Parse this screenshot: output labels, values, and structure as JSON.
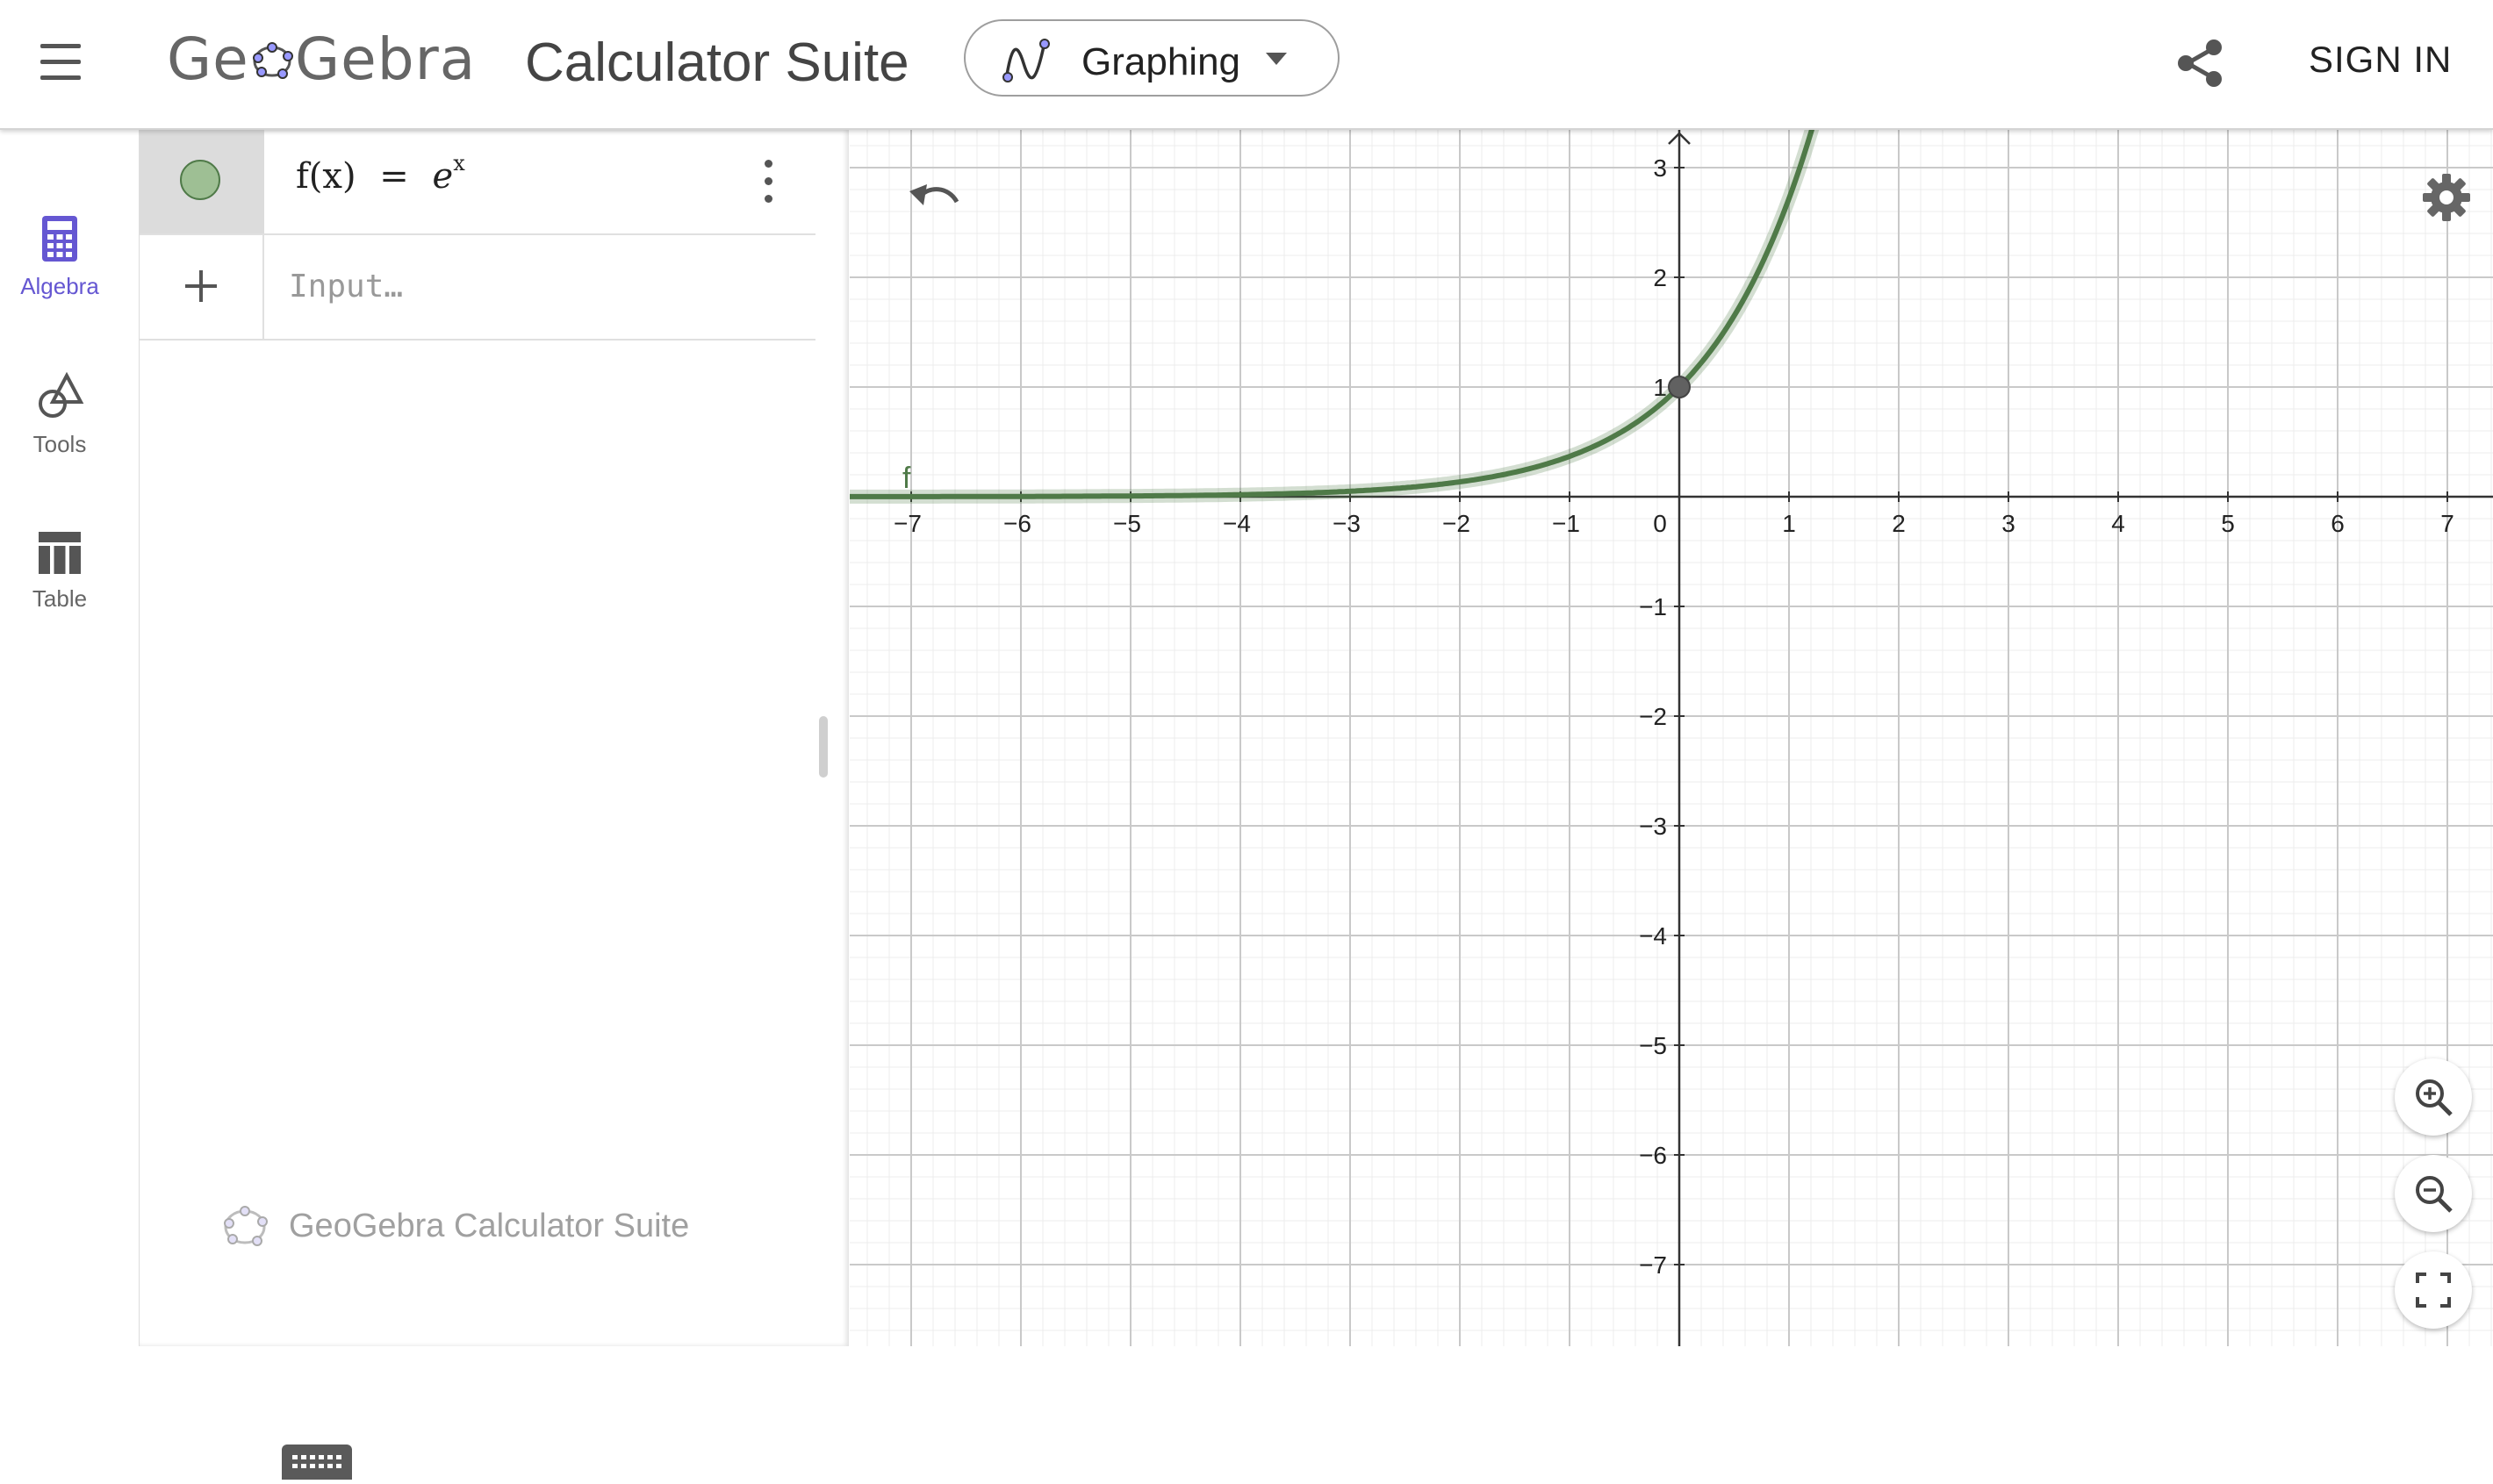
{
  "header": {
    "logo_text": "GeoGebra",
    "title": "Calculator Suite",
    "app_selector": {
      "label": "Graphing"
    },
    "sign_in": "SIGN IN"
  },
  "nav": {
    "items": [
      {
        "label": "Algebra",
        "icon": "calculator-icon",
        "active": true
      },
      {
        "label": "Tools",
        "icon": "shapes-icon",
        "active": false
      },
      {
        "label": "Table",
        "icon": "table-icon",
        "active": false
      }
    ]
  },
  "algebra": {
    "entries": [
      {
        "lhs": "f(x)",
        "eq": "=",
        "base": "e",
        "exponent": "x",
        "color": "#4f7a48"
      }
    ],
    "input_placeholder": "Input…",
    "watermark": "GeoGebra Calculator Suite"
  },
  "graph": {
    "curve_label": "f",
    "function": "e^x",
    "point": {
      "x": 0,
      "y": 1
    },
    "x_range": [
      -7.5,
      7.5
    ],
    "y_range": [
      -7.7,
      3.3
    ],
    "x_ticks": [
      "−7",
      "−6",
      "−5",
      "−4",
      "−3",
      "−2",
      "−1",
      "0",
      "1",
      "2",
      "3",
      "4",
      "5",
      "6",
      "7"
    ],
    "y_ticks_pos": [
      "1",
      "2",
      "3"
    ],
    "y_ticks_neg": [
      "−1",
      "−2",
      "−3",
      "−4",
      "−5",
      "−6",
      "−7"
    ],
    "curve_color": "#4f7a48",
    "grid": true
  },
  "colors": {
    "accent": "#6557d2",
    "curve": "#4f7a48",
    "marble_fill": "#9ebf94"
  }
}
